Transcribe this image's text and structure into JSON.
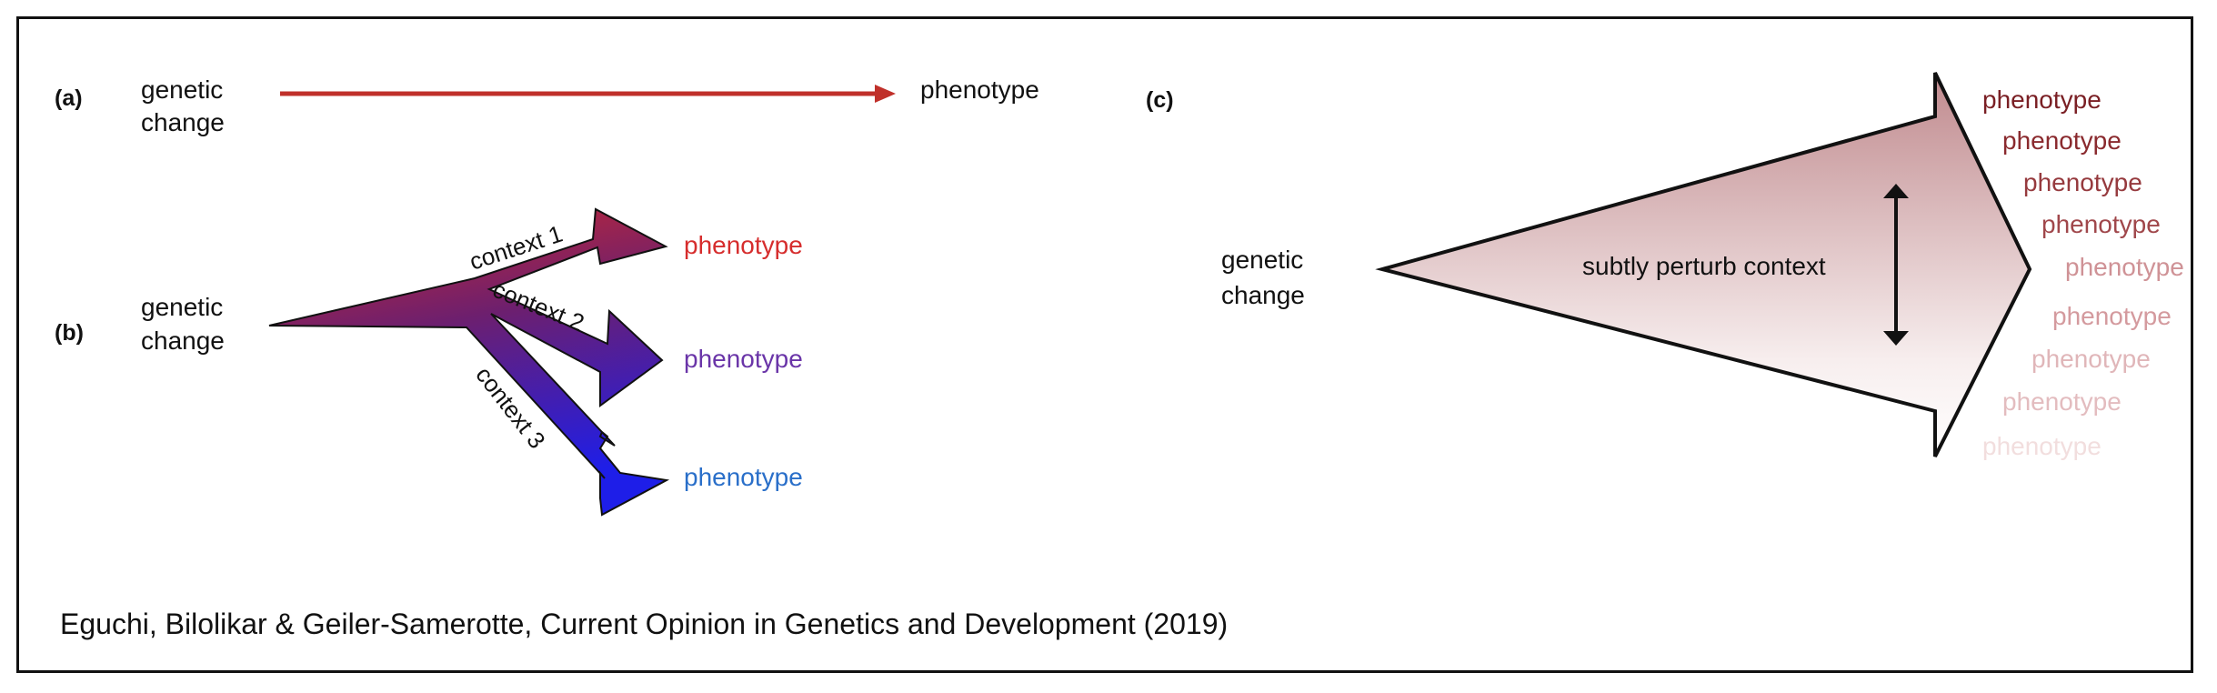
{
  "panel_a": {
    "label": "(a)",
    "source_line1": "genetic",
    "source_line2": "change",
    "target": "phenotype"
  },
  "panel_b": {
    "label": "(b)",
    "source_line1": "genetic",
    "source_line2": "change",
    "branches": [
      {
        "context": "context 1",
        "phenotype": "phenotype",
        "color": "#d62d2d"
      },
      {
        "context": "context 2",
        "phenotype": "phenotype",
        "color": "#6a35a8"
      },
      {
        "context": "context 3",
        "phenotype": "phenotype",
        "color": "#2a6fc9"
      }
    ]
  },
  "panel_c": {
    "label": "(c)",
    "source_line1": "genetic",
    "source_line2": "change",
    "arrow_label": "subtly perturb context",
    "phenotypes": [
      {
        "text": "phenotype",
        "color": "#7a1f24"
      },
      {
        "text": "phenotype",
        "color": "#8a2a2e"
      },
      {
        "text": "phenotype",
        "color": "#963a3e"
      },
      {
        "text": "phenotype",
        "color": "#a0474b"
      },
      {
        "text": "phenotype",
        "color": "#cf9296"
      },
      {
        "text": "phenotype",
        "color": "#d49a9e"
      },
      {
        "text": "phenotype",
        "color": "#e0b6b9"
      },
      {
        "text": "phenotype",
        "color": "#e3bcbf"
      },
      {
        "text": "phenotype",
        "color": "#f2dede"
      }
    ]
  },
  "citation": "Eguchi, Bilolikar & Geiler-Samerotte, Current Opinion in Genetics and Development (2019)"
}
